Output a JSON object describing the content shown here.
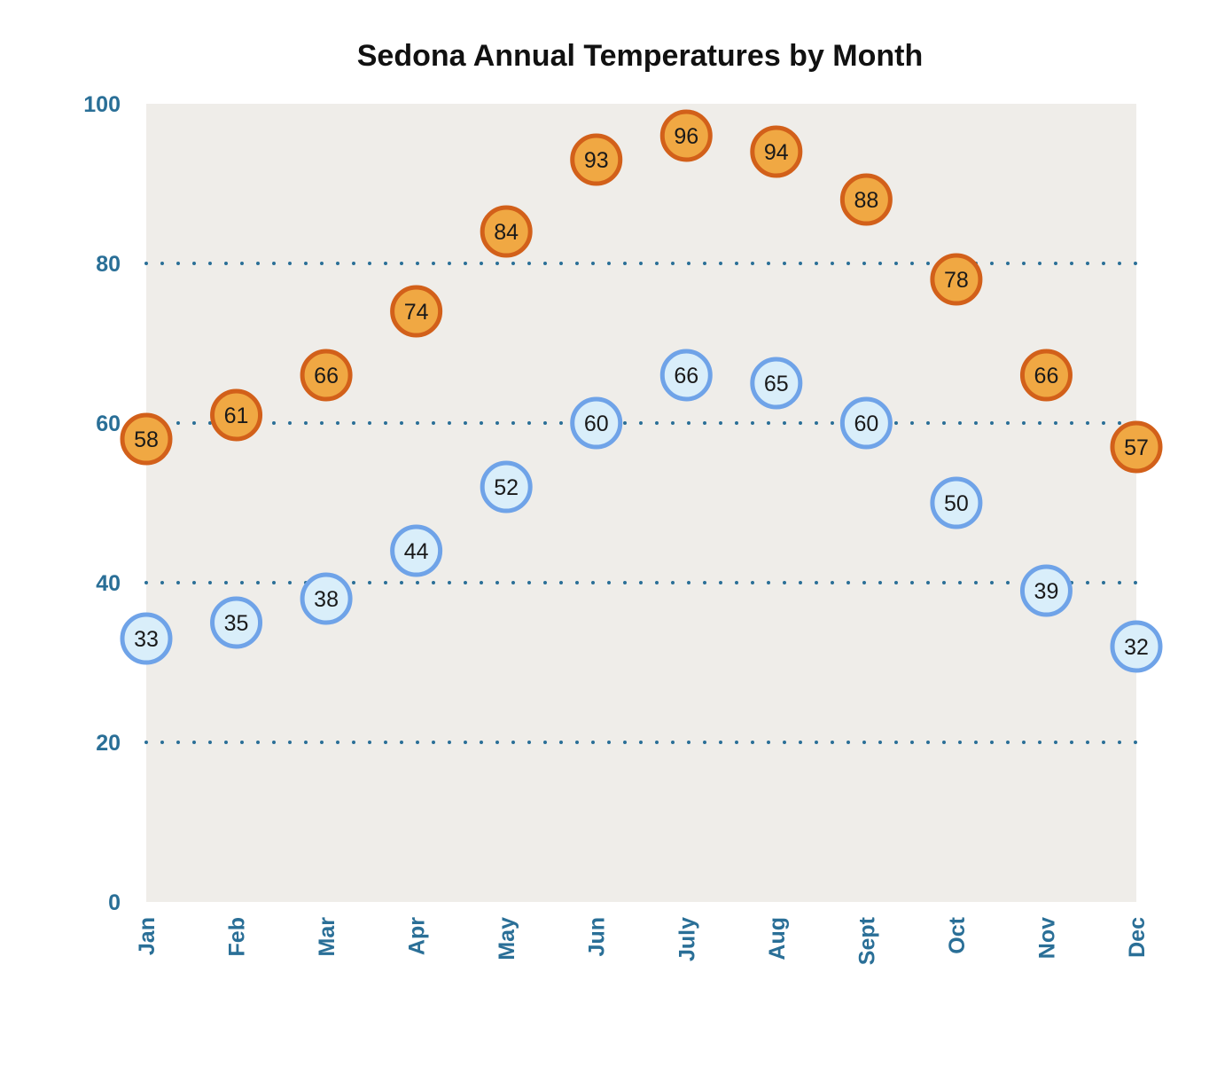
{
  "chart_data": {
    "type": "scatter",
    "title": "Sedona Annual Temperatures by Month",
    "xlabel": "",
    "ylabel": "",
    "categories": [
      "Jan",
      "Feb",
      "Mar",
      "Apr",
      "May",
      "Jun",
      "July",
      "Aug",
      "Sept",
      "Oct",
      "Nov",
      "Dec"
    ],
    "ylim": [
      0,
      100
    ],
    "yticks": [
      0,
      20,
      40,
      60,
      80,
      100
    ],
    "grid": "horizontal dotted lines at 20, 40, 60, 80",
    "legend": "none",
    "series": [
      {
        "values": [
          58,
          61,
          66,
          74,
          84,
          93,
          96,
          94,
          88,
          78,
          66,
          57
        ],
        "fill": "#f0a843",
        "stroke": "#d2601a"
      },
      {
        "values": [
          33,
          35,
          38,
          44,
          52,
          60,
          66,
          65,
          60,
          50,
          39,
          32
        ],
        "fill": "#d9eefa",
        "stroke": "#6fa3e8"
      }
    ],
    "colors": {
      "plot_background": "#efede9",
      "grid": "#2a6f97",
      "tick_text": "#2a6f97"
    }
  }
}
